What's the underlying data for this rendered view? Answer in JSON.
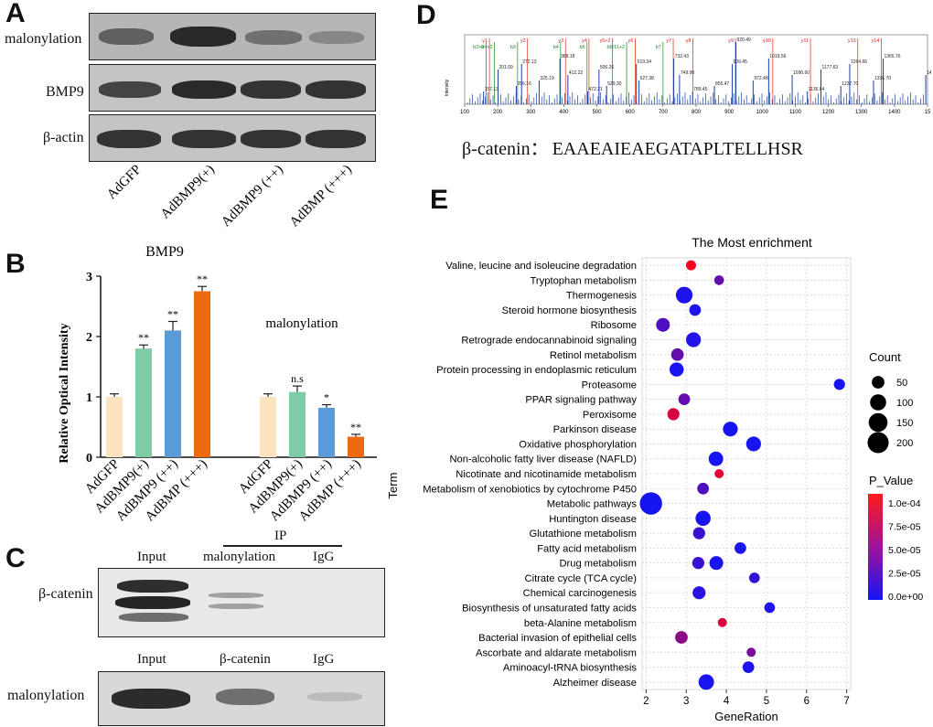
{
  "panelA": {
    "letter": "A",
    "row_labels": [
      "malonylation",
      "BMP9",
      "β-actin"
    ],
    "lanes": [
      "AdGFP",
      "AdBMP9(+)",
      "AdBMP9 (++)",
      "AdBMP (+++)"
    ],
    "band_intensity": {
      "malonylation": [
        0.55,
        0.9,
        0.45,
        0.3
      ],
      "BMP9": [
        0.75,
        0.9,
        0.85,
        0.85
      ],
      "beta_actin": [
        0.85,
        0.85,
        0.85,
        0.85
      ]
    }
  },
  "panelB": {
    "letter": "B",
    "title": "BMP9",
    "series2_label": "malonylation",
    "ylabel": "Relative Optical Intensity",
    "ymax": "3",
    "yticks": [
      "0",
      "1",
      "2",
      "3"
    ],
    "colors": [
      "#fbe3c0",
      "#7fcba6",
      "#5b9bd5",
      "#ed6a11"
    ]
  },
  "chart_data": {
    "type": "bar",
    "title": "BMP9",
    "ylabel": "Relative Optical Intensity",
    "ylim": [
      0,
      3
    ],
    "categories": [
      "AdGFP",
      "AdBMP9(+)",
      "AdBMP9 (++)",
      "AdBMP (+++)"
    ],
    "series": [
      {
        "name": "BMP9",
        "values": [
          1.0,
          1.8,
          2.1,
          2.75
        ],
        "errors": [
          0.05,
          0.06,
          0.15,
          0.08
        ],
        "sig": [
          "",
          "**",
          "**",
          "**"
        ]
      },
      {
        "name": "malonylation",
        "values": [
          1.0,
          1.08,
          0.82,
          0.34
        ],
        "errors": [
          0.05,
          0.1,
          0.05,
          0.04
        ],
        "sig": [
          "",
          "n.s",
          "*",
          "**"
        ]
      }
    ]
  },
  "panelC": {
    "letter": "C",
    "ip_label": "IP",
    "top_cols": [
      "Input",
      "malonylation",
      "IgG"
    ],
    "top_row": "β-catenin",
    "bottom_cols": [
      "Input",
      "β-catenin",
      "IgG"
    ],
    "bottom_row": "malonylation"
  },
  "panelD": {
    "letter": "D",
    "ylabel": "Intensity",
    "sequence_label": "β-catenin：",
    "sequence": "EAAEAIEAEGATAPLTELLHSR",
    "x_ticks": [
      "100",
      "200",
      "300",
      "400",
      "500",
      "600",
      "700",
      "800",
      "900",
      "1000",
      "1100",
      "1200",
      "1300",
      "1400",
      "15"
    ],
    "b_ions": [
      "b2+2",
      "b4+2",
      "b3",
      "b4",
      "b5",
      "b6/11+2",
      "b7"
    ],
    "y_ions": [
      "y1",
      "y2",
      "y3",
      "y4",
      "y5+2",
      "y6",
      "y7",
      "y8",
      "y9",
      "y10",
      "y11",
      "y13",
      "y14"
    ],
    "peak_labels": [
      "157.13",
      "201.09",
      "256.16",
      "272.13",
      "325.19",
      "388.18",
      "412.22",
      "472.21",
      "506.26",
      "529.30",
      "619.34",
      "627.38",
      "732.43",
      "749.90",
      "789.45",
      "920.49",
      "855.47",
      "909.45",
      "972.48",
      "1019.56",
      "1090.60",
      "1136.64",
      "1177.63",
      "1237.70",
      "1264.66",
      "1336.70",
      "1365.76",
      "1494.74"
    ]
  },
  "panelE": {
    "letter": "E",
    "title": "The Most enrichment",
    "xlabel": "GeneRation",
    "ylabel": "Term",
    "xticks": [
      "2",
      "3",
      "4",
      "5",
      "6",
      "7"
    ],
    "legend_count_title": "Count",
    "legend_count_values": [
      "50",
      "100",
      "150",
      "200"
    ],
    "legend_p_title": "P_Value",
    "legend_p_values": [
      "1.0e-04",
      "7.5e-05",
      "5.0e-05",
      "2.5e-05",
      "0.0e+00"
    ],
    "terms": [
      {
        "term": "Valine, leucine and isoleucine degradation",
        "x": 3.12,
        "count": 25,
        "p": 0.000115
      },
      {
        "term": "Tryptophan metabolism",
        "x": 3.82,
        "count": 22,
        "p": 4e-05
      },
      {
        "term": "Thermogenesis",
        "x": 2.95,
        "count": 110,
        "p": 5e-06
      },
      {
        "term": "Steroid hormone biosynthesis",
        "x": 3.22,
        "count": 40,
        "p": 5e-06
      },
      {
        "term": "Ribosome",
        "x": 2.42,
        "count": 65,
        "p": 3e-05
      },
      {
        "term": "Retrograde endocannabinoid signaling",
        "x": 3.18,
        "count": 80,
        "p": 8e-06
      },
      {
        "term": "Retinol metabolism",
        "x": 2.78,
        "count": 50,
        "p": 4e-05
      },
      {
        "term": "Protein processing in endoplasmic reticulum",
        "x": 2.76,
        "count": 70,
        "p": 3e-06
      },
      {
        "term": "Proteasome",
        "x": 6.82,
        "count": 35,
        "p": 2e-06
      },
      {
        "term": "PPAR signaling pathway",
        "x": 2.95,
        "count": 40,
        "p": 4e-05
      },
      {
        "term": "Peroxisome",
        "x": 2.68,
        "count": 45,
        "p": 0.0001
      },
      {
        "term": "Parkinson disease",
        "x": 4.1,
        "count": 80,
        "p": 2e-06
      },
      {
        "term": "Oxidative phosphorylation",
        "x": 4.68,
        "count": 80,
        "p": 2e-06
      },
      {
        "term": "Non-alcoholic fatty liver disease (NAFLD)",
        "x": 3.74,
        "count": 75,
        "p": 2e-06
      },
      {
        "term": "Nicotinate and nicotinamide metabolism",
        "x": 3.82,
        "count": 18,
        "p": 0.000105
      },
      {
        "term": "Metabolism of xenobiotics by cytochrome P450",
        "x": 3.42,
        "count": 40,
        "p": 3e-05
      },
      {
        "term": "Metabolic pathways",
        "x": 2.12,
        "count": 230,
        "p": 1e-06
      },
      {
        "term": "Huntington disease",
        "x": 3.42,
        "count": 85,
        "p": 2e-06
      },
      {
        "term": "Glutathione metabolism",
        "x": 3.32,
        "count": 45,
        "p": 2e-05
      },
      {
        "term": "Fatty acid metabolism",
        "x": 4.35,
        "count": 40,
        "p": 3e-06
      },
      {
        "term": "Drug metabolism",
        "x": 3.3,
        "count": 45,
        "p": 2e-05
      },
      {
        "term": "Citrate cycle (TCA cycle)",
        "x": 4.7,
        "count": 30,
        "p": 1.5e-05
      },
      {
        "term": "Chemical carcinogenesis",
        "x": 3.32,
        "count": 55,
        "p": 1e-05
      },
      {
        "term": "Biosynthesis of unsaturated fatty acids",
        "x": 5.08,
        "count": 30,
        "p": 5e-06
      },
      {
        "term": "beta-Alanine metabolism",
        "x": 3.9,
        "count": 18,
        "p": 0.0001
      },
      {
        "term": "Bacterial invasion of epithelial cells",
        "x": 2.88,
        "count": 50,
        "p": 6e-05
      },
      {
        "term": "Ascorbate and aldarate metabolism",
        "x": 4.62,
        "count": 18,
        "p": 5e-05
      },
      {
        "term": "Aminoacyl-tRNA biosynthesis",
        "x": 4.55,
        "count": 40,
        "p": 5e-06
      },
      {
        "term": "Alzheimer disease",
        "x": 3.5,
        "count": 90,
        "p": 3e-06
      }
    ],
    "extra_point_drug": {
      "x": 3.75,
      "count": 65,
      "p": 3e-06
    }
  }
}
